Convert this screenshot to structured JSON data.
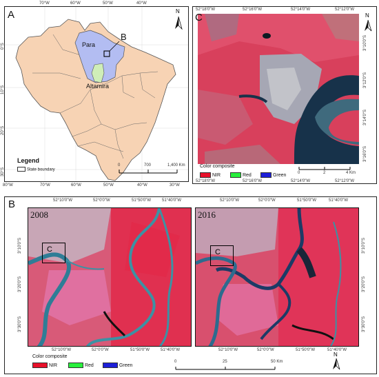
{
  "panel_a": {
    "letter": "A",
    "region_labels": [
      "Para",
      "Altamira"
    ],
    "inset_marker": "B",
    "north": "N",
    "legend_title": "Legend",
    "legend_item": "State boundary",
    "scale_labels": [
      "0",
      "700",
      "1,400 Km"
    ],
    "lon_ticks": [
      "70°W",
      "60°W",
      "50°W",
      "40°W"
    ],
    "lat_ticks": [
      "0°S",
      "10°S",
      "20°S",
      "30°S"
    ],
    "bottom_ticks": [
      "80°W",
      "70°W",
      "60°W",
      "50°W",
      "40°W",
      "30°W"
    ],
    "colors": {
      "land": "#f7d3b4",
      "para": "#b3bdf2",
      "altamira": "#cfeeb8"
    }
  },
  "panel_c": {
    "letter": "C",
    "north": "N",
    "top_ticks": [
      "52°18'0\"W",
      "52°16'0\"W",
      "52°14'0\"W",
      "52°12'0\"W"
    ],
    "bottom_ticks": [
      "52°18'0\"W",
      "52°16'0\"W",
      "52°14'0\"W",
      "52°12'0\"W"
    ],
    "right_ticks": [
      "3°10'0\"S",
      "3°12'0\"S",
      "3°14'0\"S",
      "3°16'0\"S"
    ],
    "left_ticks": [
      "3°12'0\"S",
      "3°14'0\"S"
    ],
    "legend_title": "Color composite",
    "legend": [
      {
        "label": "NIR",
        "color": "#e8102a"
      },
      {
        "label": "Red",
        "color": "#28f03c"
      },
      {
        "label": "Green",
        "color": "#1d1fd8"
      }
    ],
    "scale_labels": [
      "0",
      "2",
      "4 Km"
    ]
  },
  "panel_b": {
    "letter": "B",
    "north": "N",
    "years": [
      "2008",
      "2016"
    ],
    "box_label": "C",
    "top_ticks_left": [
      "52°10'0\"W",
      "52°0'0\"W",
      "51°50'0\"W",
      "51°40'0\"W"
    ],
    "top_ticks_right": [
      "52°10'0\"W",
      "52°0'0\"W",
      "51°50'0\"W",
      "51°40'0\"W"
    ],
    "bottom_ticks_left": [
      "52°10'0\"W",
      "52°0'0\"W",
      "51°50'0\"W",
      "51°40'0\"W"
    ],
    "bottom_ticks_right": [
      "52°10'0\"W",
      "52°0'0\"W",
      "51°50'0\"W",
      "51°40'0\"W"
    ],
    "left_ticks": [
      "3°10'0\"S",
      "3°20'0\"S",
      "3°30'0\"S"
    ],
    "right_ticks": [
      "3°10'0\"S",
      "3°20'0\"S",
      "3°30'0\"S"
    ],
    "legend_title": "Color composite",
    "legend": [
      {
        "label": "NIR",
        "color": "#e8102a"
      },
      {
        "label": "Red",
        "color": "#28f03c"
      },
      {
        "label": "Green",
        "color": "#1d1fd8"
      }
    ],
    "scale_labels": [
      "0",
      "25",
      "50 Km"
    ]
  }
}
